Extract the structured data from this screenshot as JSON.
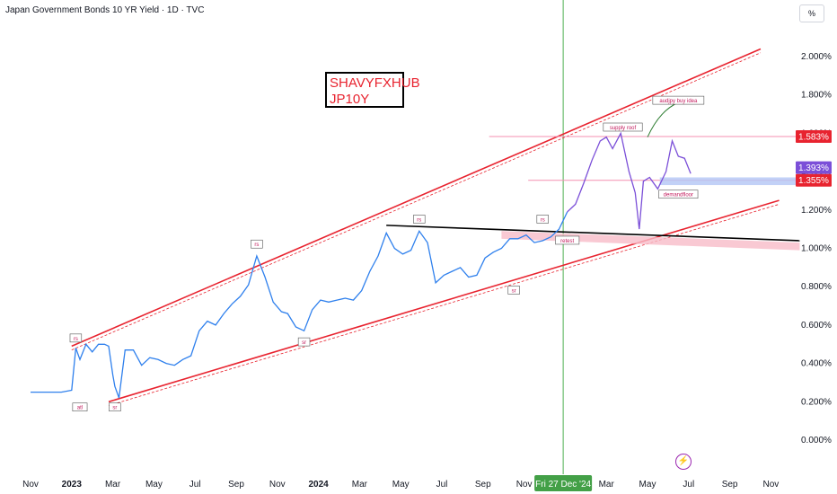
{
  "header": {
    "title": "Japan Government Bonds 10 YR Yield · 1D · TVC",
    "unit_button": "%"
  },
  "watermark": {
    "line1": "SHAVYFXHUB",
    "line2": "JP10Y"
  },
  "icons": {
    "lightning": "lightning-icon"
  },
  "colors": {
    "price_line": "#2f80ed",
    "price_line_recent": "#7b4fd8",
    "channel": "#e8232f",
    "resistance": "#000000",
    "zone": "#f8bbc8",
    "demand_zone": "#b3c6f5",
    "crosshair": "#4caf50",
    "last_price_bg": "#7b4fd8",
    "level_bg": "#e8232f"
  },
  "chart_data": {
    "type": "line",
    "title": "Japan Government Bonds 10 YR Yield · 1D · TVC",
    "ylim": [
      -0.05,
      2.1
    ],
    "y_ticks": [
      "2.000%",
      "1.800%",
      "1.600%",
      "1.400%",
      "1.200%",
      "1.000%",
      "0.800%",
      "0.600%",
      "0.400%",
      "0.200%",
      "0.000%"
    ],
    "y_tick_values": [
      2.0,
      1.8,
      1.6,
      1.4,
      1.2,
      1.0,
      0.8,
      0.6,
      0.4,
      0.2,
      0.0
    ],
    "x_ticks": [
      "Nov",
      "2023",
      "Mar",
      "May",
      "Jul",
      "Sep",
      "Nov",
      "2024",
      "Mar",
      "May",
      "Jul",
      "Sep",
      "Nov",
      "Mar",
      "May",
      "Jul",
      "Sep",
      "Nov"
    ],
    "x_tick_months": [
      0,
      2,
      4,
      6,
      8,
      10,
      12,
      14,
      16,
      18,
      20,
      22,
      24,
      28,
      30,
      32,
      34,
      36
    ],
    "bold_ticks": [
      "2023",
      "2024"
    ],
    "crosshair_label": "Fri 27 Dec '24",
    "crosshair_month": 25.9,
    "series": [
      {
        "values_month": [
          0,
          0.5,
          1,
          1.5,
          2,
          2.2,
          2.4,
          2.7,
          3,
          3.3,
          3.6,
          3.8,
          4.0,
          4.1,
          4.3,
          4.6,
          5,
          5.4,
          5.8,
          6.2,
          6.6,
          7,
          7.4,
          7.8,
          8.2,
          8.6,
          9,
          9.4,
          9.8,
          10.2,
          10.6,
          11,
          11.4,
          11.8,
          12.2,
          12.5,
          12.9,
          13.3,
          13.7,
          14.1,
          14.5,
          14.9,
          15.3,
          15.7,
          16.1,
          16.5,
          16.9,
          17.3,
          17.7,
          18.1,
          18.5,
          18.9,
          19.3,
          19.7,
          20.1,
          20.5,
          20.9,
          21.3,
          21.7,
          22.1,
          22.5,
          22.9,
          23.3,
          23.7,
          24.1,
          24.5,
          24.9,
          25.3,
          25.7,
          26.1,
          26.5,
          26.9,
          27.3,
          27.7,
          28.0,
          28.3,
          28.7,
          29.1,
          29.4,
          29.6,
          29.8,
          30.1,
          30.5,
          30.9,
          31.2,
          31.5,
          31.8,
          32.1
        ],
        "values": [
          0.25,
          0.25,
          0.25,
          0.25,
          0.26,
          0.48,
          0.42,
          0.5,
          0.46,
          0.5,
          0.5,
          0.49,
          0.34,
          0.28,
          0.22,
          0.47,
          0.47,
          0.39,
          0.43,
          0.42,
          0.4,
          0.39,
          0.42,
          0.44,
          0.57,
          0.62,
          0.6,
          0.66,
          0.71,
          0.75,
          0.81,
          0.96,
          0.85,
          0.72,
          0.67,
          0.66,
          0.59,
          0.57,
          0.68,
          0.73,
          0.72,
          0.73,
          0.74,
          0.73,
          0.78,
          0.88,
          0.96,
          1.08,
          1.0,
          0.97,
          0.99,
          1.09,
          1.03,
          0.82,
          0.86,
          0.88,
          0.9,
          0.85,
          0.86,
          0.95,
          0.98,
          1.0,
          1.05,
          1.05,
          1.07,
          1.03,
          1.04,
          1.06,
          1.1,
          1.19,
          1.23,
          1.34,
          1.46,
          1.56,
          1.58,
          1.52,
          1.6,
          1.4,
          1.29,
          1.1,
          1.35,
          1.37,
          1.31,
          1.4,
          1.56,
          1.48,
          1.47,
          1.39
        ]
      }
    ],
    "last_value": 1.393,
    "last_value_label": "1.393%",
    "levels": [
      {
        "label": "1.583%",
        "value": 1.583
      },
      {
        "label": "1.355%",
        "value": 1.355
      }
    ],
    "annotations": [
      {
        "text": "rs",
        "x": 2.2,
        "y": 0.53
      },
      {
        "text": "atl",
        "x": 2.4,
        "y": 0.17
      },
      {
        "text": "sr",
        "x": 4.1,
        "y": 0.17
      },
      {
        "text": "rs",
        "x": 11.0,
        "y": 1.02
      },
      {
        "text": "sr",
        "x": 13.3,
        "y": 0.51
      },
      {
        "text": "rs",
        "x": 18.9,
        "y": 1.15
      },
      {
        "text": "sr",
        "x": 23.5,
        "y": 0.78
      },
      {
        "text": "rs",
        "x": 24.9,
        "y": 1.15
      },
      {
        "text": "retest",
        "x": 26.1,
        "y": 1.04
      },
      {
        "text": "supply roof",
        "x": 28.8,
        "y": 1.63
      },
      {
        "text": "audjpy buy idea",
        "x": 31.5,
        "y": 1.77
      },
      {
        "text": "demandfloor",
        "x": 31.5,
        "y": 1.28
      }
    ]
  }
}
